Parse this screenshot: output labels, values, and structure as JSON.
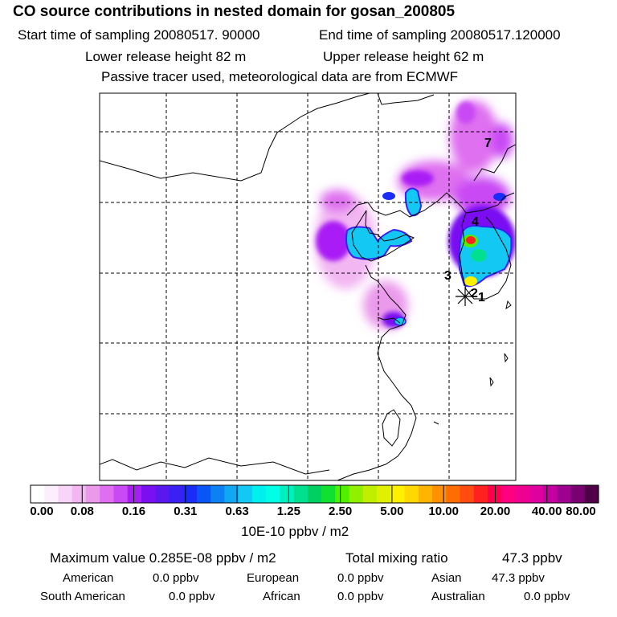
{
  "header": {
    "title": "CO  source contributions in nested domain for gosan_200805",
    "start_time": "Start time of sampling 20080517. 90000",
    "end_time": "End time of sampling 20080517.120000",
    "lower_release": "Lower release height   82 m",
    "upper_release": "Upper release height   62 m",
    "tracer_note": "Passive tracer used, meteorological data are from ECMWF"
  },
  "map": {
    "site_labels": [
      "1",
      "2",
      "3",
      "4",
      "7"
    ],
    "marker_icon": "asterisk-site-marker-icon"
  },
  "colorbar": {
    "tick_labels": [
      "0.00",
      "0.08",
      "0.16",
      "0.31",
      "0.63",
      "1.25",
      "2.50",
      "5.00",
      "10.00",
      "20.00",
      "40.00",
      "80.00"
    ],
    "units": "10E-10 ppbv / m2",
    "colors": [
      "#ffffff",
      "#fdeefd",
      "#f8d4f8",
      "#f2b6f2",
      "#eb9aeb",
      "#df6ff0",
      "#c94af4",
      "#a91df5",
      "#7a10f2",
      "#5a18ee",
      "#3a20f4",
      "#1a2cf8",
      "#0a55f5",
      "#0d80f4",
      "#10a8f4",
      "#14c8f4",
      "#00f0f0",
      "#00ffe6",
      "#00f0c0",
      "#00e090",
      "#00d060",
      "#10e030",
      "#50f000",
      "#90f000",
      "#c0f000",
      "#e0f000",
      "#fff000",
      "#ffd800",
      "#ffb400",
      "#ff9000",
      "#ff6c00",
      "#ff4a10",
      "#ff2020",
      "#ff0050",
      "#ff0080",
      "#f00090",
      "#e000a0",
      "#c400a0",
      "#a00090",
      "#780070",
      "#500048"
    ]
  },
  "stats": {
    "max_label": "Maximum value  0.285E-08 ppbv / m2",
    "total_label": "Total mixing ratio",
    "total_value": "47.3 ppbv"
  },
  "sources": [
    {
      "name": "American",
      "value": "0.0 ppbv"
    },
    {
      "name": "European",
      "value": "0.0 ppbv"
    },
    {
      "name": "Asian",
      "value": "47.3 ppbv"
    },
    {
      "name": "South American",
      "value": "0.0 ppbv"
    },
    {
      "name": "African",
      "value": "0.0 ppbv"
    },
    {
      "name": "Australian",
      "value": "0.0 ppbv"
    }
  ]
}
